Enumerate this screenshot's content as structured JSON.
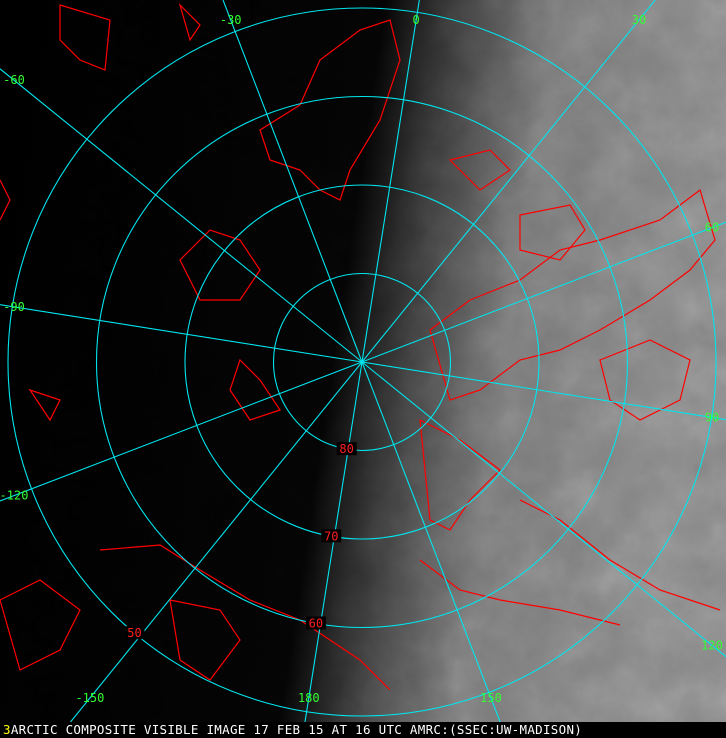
{
  "image": {
    "caption_frame": "3",
    "caption": "ARCTIC COMPOSITE VISIBLE IMAGE 17 FEB 15 AT 16 UTC AMRC:(SSEC:UW-MADISON)"
  },
  "grid": {
    "meridian_color": "#00e5ee",
    "meridian_label_color": "#33ff33",
    "latitude_label_color": "#ff2020",
    "coastline_color": "#ff0000",
    "meridians": [
      "0",
      "30",
      "60",
      "90",
      "120",
      "150",
      "180",
      "-150",
      "-120",
      "-90",
      "-60",
      "-30"
    ],
    "latitudes": [
      "80",
      "70",
      "60",
      "50"
    ]
  }
}
